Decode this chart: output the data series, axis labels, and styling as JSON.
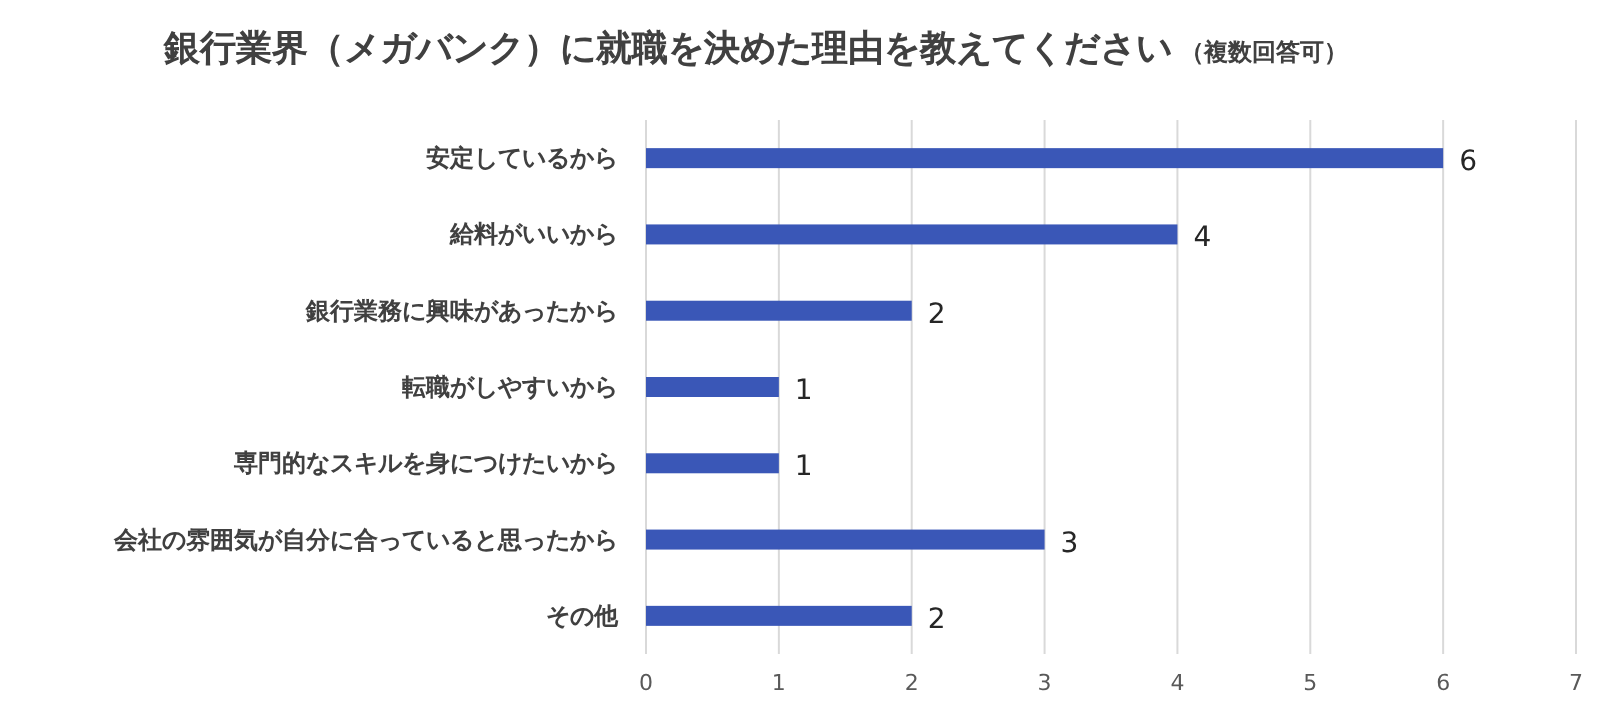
{
  "chart_data": {
    "type": "bar",
    "orientation": "horizontal",
    "title": "銀行業界（メガバンク）に就職を決めた理由を教えてください",
    "subtitle": "（複数回答可）",
    "categories": [
      "安定しているから",
      "給料がいいから",
      "銀行業務に興味があったから",
      "転職がしやすいから",
      "専門的なスキルを身につけたいから",
      "会社の雰囲気が自分に合っていると思ったから",
      "その他"
    ],
    "values": [
      6,
      4,
      2,
      1,
      1,
      3,
      2
    ],
    "color": "#3a57b7",
    "xlim": [
      0,
      7
    ],
    "xticks": [
      0,
      1,
      2,
      3,
      4,
      5,
      6,
      7
    ],
    "grid": "x",
    "data_labels": true
  }
}
